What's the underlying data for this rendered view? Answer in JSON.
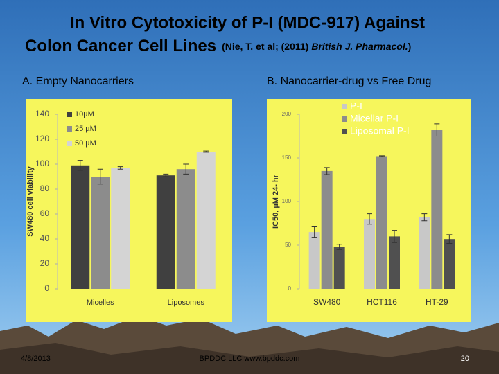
{
  "slide": {
    "title_line1": "In Vitro Cytotoxicity of P-I (MDC-917) Against",
    "title_line2": "Colon Cancer Cell Lines",
    "citation_prefix": "(Nie, T. et al; (2011)",
    "citation_journal": "British J. Pharmacol.",
    "citation_suffix": ")",
    "panel_a": "A.  Empty Nanocarriers",
    "panel_b": "B. Nanocarrier-drug vs Free Drug",
    "date": "4/8/2013",
    "footer": "BPDDC LLC  www.bpddc.com",
    "page": "20"
  },
  "chart_data": [
    {
      "type": "bar",
      "ylabel": "SW480 cell viability",
      "categories": [
        "Micelles",
        "Liposomes"
      ],
      "series": [
        {
          "name": "10µM",
          "color": "#404040",
          "values": [
            99,
            91
          ],
          "errors": [
            4,
            1
          ]
        },
        {
          "name": "25 µM",
          "color": "#8c8c8c",
          "values": [
            90,
            96
          ],
          "errors": [
            6,
            4
          ]
        },
        {
          "name": "50 µM",
          "color": "#d4d4d4",
          "values": [
            97,
            110
          ],
          "errors": [
            1,
            0.5
          ]
        }
      ],
      "ylim": [
        0,
        140
      ],
      "yticks": [
        0,
        20,
        40,
        60,
        80,
        100,
        120,
        140
      ],
      "legend": "upper left"
    },
    {
      "type": "bar",
      "ylabel": "IC50, µM  24- hr",
      "categories": [
        "SW480",
        "HCT116",
        "HT-29"
      ],
      "series": [
        {
          "name": "P-I",
          "color": "#c8c8c8",
          "values": [
            65,
            80,
            82
          ],
          "errors": [
            6,
            6,
            4
          ]
        },
        {
          "name": "Micellar P-I",
          "color": "#8c8c8c",
          "values": [
            135,
            152,
            182
          ],
          "errors": [
            4,
            0.5,
            7
          ]
        },
        {
          "name": "Liposomal P-I",
          "color": "#505050",
          "values": [
            48,
            60,
            57
          ],
          "errors": [
            3,
            7,
            5
          ]
        }
      ],
      "ylim": [
        0,
        200
      ],
      "yticks": [
        0,
        50,
        100,
        150,
        200
      ],
      "legend": "upper right"
    }
  ]
}
